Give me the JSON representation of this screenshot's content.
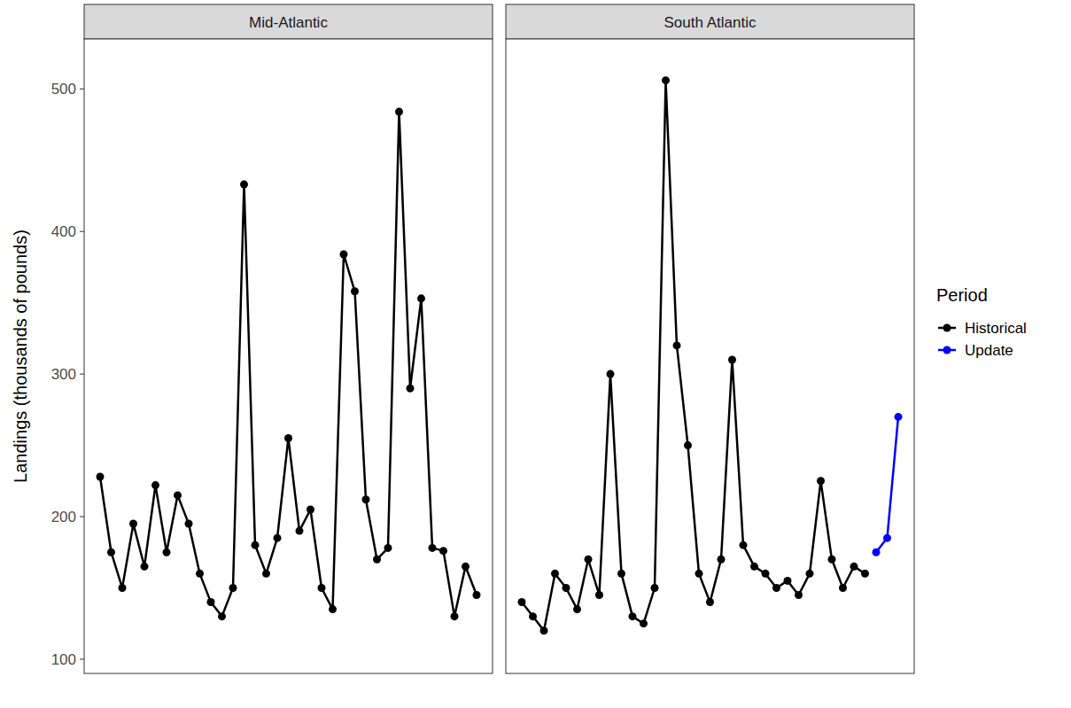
{
  "chart_data": {
    "type": "line",
    "y_label": "Landings (thousands of pounds)",
    "legend_title": "Period",
    "legend": "right",
    "grid": false,
    "tick_labels": "y",
    "ylim": [
      90,
      535
    ],
    "yticks": [
      100,
      200,
      300,
      400,
      500
    ],
    "panels": [
      {
        "title": "Mid-Atlantic",
        "categories": [
          null,
          null,
          null,
          null,
          null,
          null,
          null,
          null,
          null,
          null,
          null,
          null,
          null,
          null,
          null,
          null,
          null,
          null,
          null,
          null,
          null,
          null,
          null,
          null,
          null,
          null,
          null,
          null,
          null,
          null,
          null,
          null,
          null,
          null,
          null
        ],
        "series": [
          {
            "name": "Historical",
            "color": "#000000",
            "marker": "circle",
            "values": [
              228,
              175,
              150,
              195,
              165,
              222,
              175,
              215,
              195,
              160,
              140,
              130,
              150,
              433,
              180,
              160,
              185,
              255,
              190,
              205,
              150,
              135,
              384,
              358,
              212,
              170,
              178,
              484,
              290,
              353,
              178,
              176,
              130,
              165,
              145
            ]
          }
        ]
      },
      {
        "title": "South Atlantic",
        "categories": [
          null,
          null,
          null,
          null,
          null,
          null,
          null,
          null,
          null,
          null,
          null,
          null,
          null,
          null,
          null,
          null,
          null,
          null,
          null,
          null,
          null,
          null,
          null,
          null,
          null,
          null,
          null,
          null,
          null,
          null,
          null,
          null,
          null,
          null,
          null
        ],
        "series": [
          {
            "name": "Historical",
            "color": "#000000",
            "marker": "circle",
            "values": [
              140,
              130,
              120,
              160,
              150,
              135,
              170,
              145,
              300,
              160,
              130,
              125,
              150,
              506,
              320,
              250,
              160,
              140,
              170,
              310,
              180,
              165,
              160,
              150,
              155,
              145,
              160,
              225,
              170,
              150,
              165,
              160,
              null,
              null,
              null
            ]
          },
          {
            "name": "Update",
            "color": "#0000ff",
            "marker": "circle",
            "values": [
              null,
              null,
              null,
              null,
              null,
              null,
              null,
              null,
              null,
              null,
              null,
              null,
              null,
              null,
              null,
              null,
              null,
              null,
              null,
              null,
              null,
              null,
              null,
              null,
              null,
              null,
              null,
              null,
              null,
              null,
              null,
              null,
              175,
              185,
              270
            ]
          }
        ]
      }
    ]
  }
}
